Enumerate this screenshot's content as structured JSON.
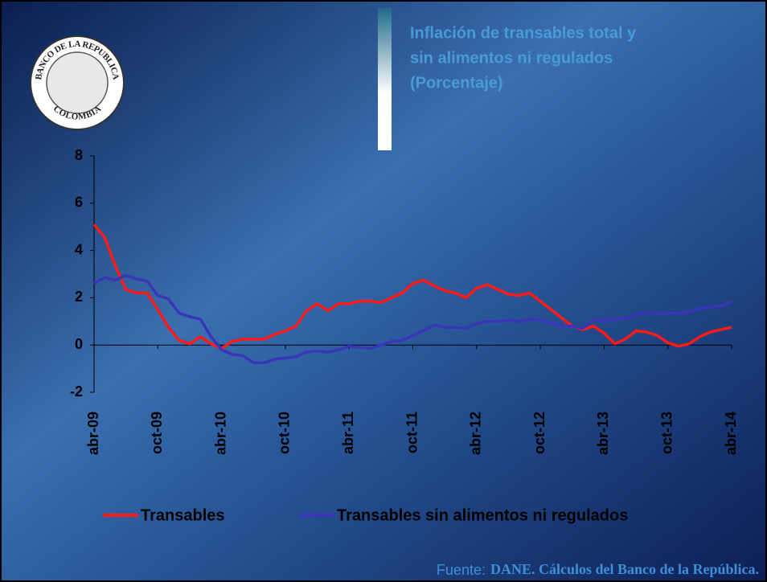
{
  "logo": {
    "top": "BANCO DE LA REPUBLICA",
    "bottom": "COLOMBIA"
  },
  "chart_data": {
    "type": "line",
    "title": [
      "Inflación de transables total y",
      "sin alimentos ni regulados",
      "(Porcentaje)"
    ],
    "categories": [
      "abr-09",
      null,
      null,
      null,
      null,
      null,
      "oct-09",
      null,
      null,
      null,
      null,
      null,
      "abr-10",
      null,
      null,
      null,
      null,
      null,
      "oct-10",
      null,
      null,
      null,
      null,
      null,
      "abr-11",
      null,
      null,
      null,
      null,
      null,
      "oct-11",
      null,
      null,
      null,
      null,
      null,
      "abr-12",
      null,
      null,
      null,
      null,
      null,
      "oct-12",
      null,
      null,
      null,
      null,
      null,
      "abr-13",
      null,
      null,
      null,
      null,
      null,
      "oct-13",
      null,
      null,
      null,
      null,
      null,
      "abr-14"
    ],
    "series": [
      {
        "name": "Transables",
        "color": "#ff1a1a",
        "values": [
          5.1,
          4.55,
          3.35,
          2.35,
          2.2,
          2.2,
          1.5,
          0.75,
          0.2,
          0.05,
          0.35,
          0.05,
          -0.15,
          0.15,
          0.25,
          0.25,
          0.25,
          0.45,
          0.6,
          0.8,
          1.45,
          1.75,
          1.45,
          1.75,
          1.75,
          1.85,
          1.85,
          1.8,
          2.0,
          2.2,
          2.6,
          2.75,
          2.5,
          2.3,
          2.2,
          2.0,
          2.4,
          2.55,
          2.35,
          2.15,
          2.1,
          2.2,
          1.85,
          1.5,
          1.15,
          0.8,
          0.65,
          0.8,
          0.5,
          0.05,
          0.25,
          0.6,
          0.55,
          0.4,
          0.1,
          -0.05,
          0.05,
          0.35,
          0.55,
          0.65,
          0.75
        ]
      },
      {
        "name": "Transables sin alimentos ni regulados",
        "color": "#3a35b8",
        "values": [
          2.6,
          2.85,
          2.75,
          2.95,
          2.8,
          2.7,
          2.1,
          1.95,
          1.35,
          1.2,
          1.1,
          0.35,
          -0.2,
          -0.4,
          -0.45,
          -0.75,
          -0.75,
          -0.6,
          -0.55,
          -0.5,
          -0.3,
          -0.25,
          -0.3,
          -0.2,
          -0.05,
          -0.1,
          -0.15,
          0.0,
          0.15,
          0.2,
          0.4,
          0.6,
          0.85,
          0.75,
          0.75,
          0.7,
          0.9,
          1.0,
          1.0,
          1.05,
          1.0,
          1.1,
          1.05,
          0.95,
          0.8,
          0.8,
          0.7,
          1.1,
          1.0,
          1.1,
          1.1,
          1.3,
          1.35,
          1.35,
          1.35,
          1.35,
          1.4,
          1.55,
          1.6,
          1.65,
          1.85
        ]
      }
    ],
    "ylim": [
      -2,
      8
    ],
    "yticks": [
      -2,
      0,
      2,
      4,
      6,
      8
    ],
    "grid": false,
    "legend": "bottom",
    "source_label": "Fuente:",
    "source_text": "DANE. Cálculos del Banco de la República."
  }
}
